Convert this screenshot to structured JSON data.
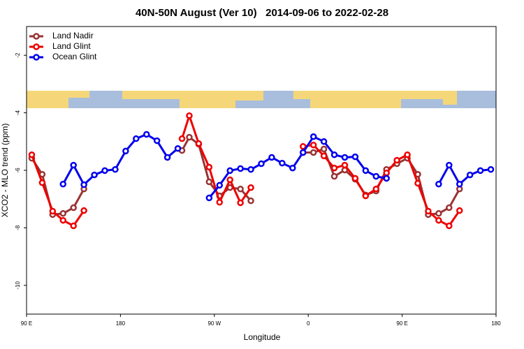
{
  "chart_data": {
    "type": "line",
    "title": "40N-50N August (Ver 10)   2014-09-06 to 2022-02-28",
    "x_label": "Longitude",
    "y_label": "XCO2 - MLO trend (ppm)",
    "xlim": [
      90,
      540
    ],
    "xticks": [
      {
        "value": 90,
        "label": "90 E"
      },
      180,
      {
        "value": 270,
        "label": "90 W"
      },
      {
        "value": 360,
        "label": "0"
      },
      {
        "value": 450,
        "label": "90 E"
      },
      {
        "value": 540,
        "label": "180"
      }
    ],
    "ylim": [
      -11,
      -1
    ],
    "yticks": [
      -10,
      -8,
      -6,
      -4,
      -2
    ],
    "legend": "top-left",
    "series": [
      {
        "name": "Land Nadir",
        "color": "#993333",
        "x": [
          95,
          105,
          115,
          125,
          135,
          145,
          190,
          239,
          246,
          255,
          265,
          275,
          285,
          295,
          305,
          330,
          355,
          365,
          375,
          385,
          395,
          405,
          415,
          425,
          435,
          445,
          455,
          465,
          475,
          485,
          495,
          505
        ],
        "values": [
          -5.58,
          -6.14,
          -7.54,
          -7.5,
          -7.3,
          -6.65,
          null,
          -5.31,
          -4.85,
          -5.09,
          -6.4,
          -6.89,
          -6.6,
          -6.65,
          -7.06,
          null,
          -5.38,
          -5.38,
          -5.26,
          -6.21,
          -5.99,
          -6.31,
          -6.86,
          -6.72,
          -5.97,
          -5.77,
          -5.58,
          -6.14,
          -7.54,
          -7.5,
          -7.3,
          -6.65
        ]
      },
      {
        "name": "Land Glint",
        "color": "#ee0000",
        "x": [
          95,
          105,
          115,
          125,
          135,
          145,
          190,
          239,
          246,
          255,
          265,
          275,
          285,
          295,
          305,
          330,
          355,
          365,
          375,
          385,
          395,
          405,
          415,
          425,
          435,
          445,
          455,
          465,
          475,
          485,
          495,
          505
        ],
        "values": [
          -5.46,
          -6.43,
          -7.42,
          -7.74,
          -7.93,
          -7.4,
          null,
          -4.9,
          -4.1,
          -5.07,
          -5.89,
          -7.11,
          -6.33,
          -7.13,
          -6.6,
          null,
          -5.17,
          -5.12,
          -5.5,
          -5.92,
          -5.82,
          -6.28,
          -6.89,
          -6.65,
          -6.09,
          -5.65,
          -5.46,
          -6.45,
          -7.42,
          -7.74,
          -7.93,
          -7.4
        ]
      },
      {
        "name": "Ocean Glint",
        "color": "#0000ee",
        "x": [
          125,
          135,
          145,
          155,
          165,
          175,
          185,
          195,
          205,
          215,
          225,
          235,
          250,
          265,
          275,
          285,
          295,
          305,
          315,
          325,
          335,
          345,
          355,
          365,
          375,
          385,
          395,
          405,
          415,
          425,
          435,
          460,
          485,
          495,
          505,
          515,
          525,
          535
        ],
        "values": [
          -6.48,
          -5.82,
          -6.5,
          -6.16,
          -6.01,
          -5.97,
          -5.33,
          -4.9,
          -4.75,
          -4.97,
          -5.55,
          -5.24,
          null,
          -6.96,
          -6.52,
          -6.01,
          -5.94,
          -5.97,
          -5.77,
          -5.55,
          -5.75,
          -5.92,
          -5.38,
          -4.83,
          -5.0,
          -5.46,
          -5.55,
          -5.53,
          -6.01,
          -6.21,
          -6.28,
          null,
          -6.48,
          -5.82,
          -6.48,
          -6.16,
          -6.01,
          -5.97
        ]
      }
    ]
  }
}
